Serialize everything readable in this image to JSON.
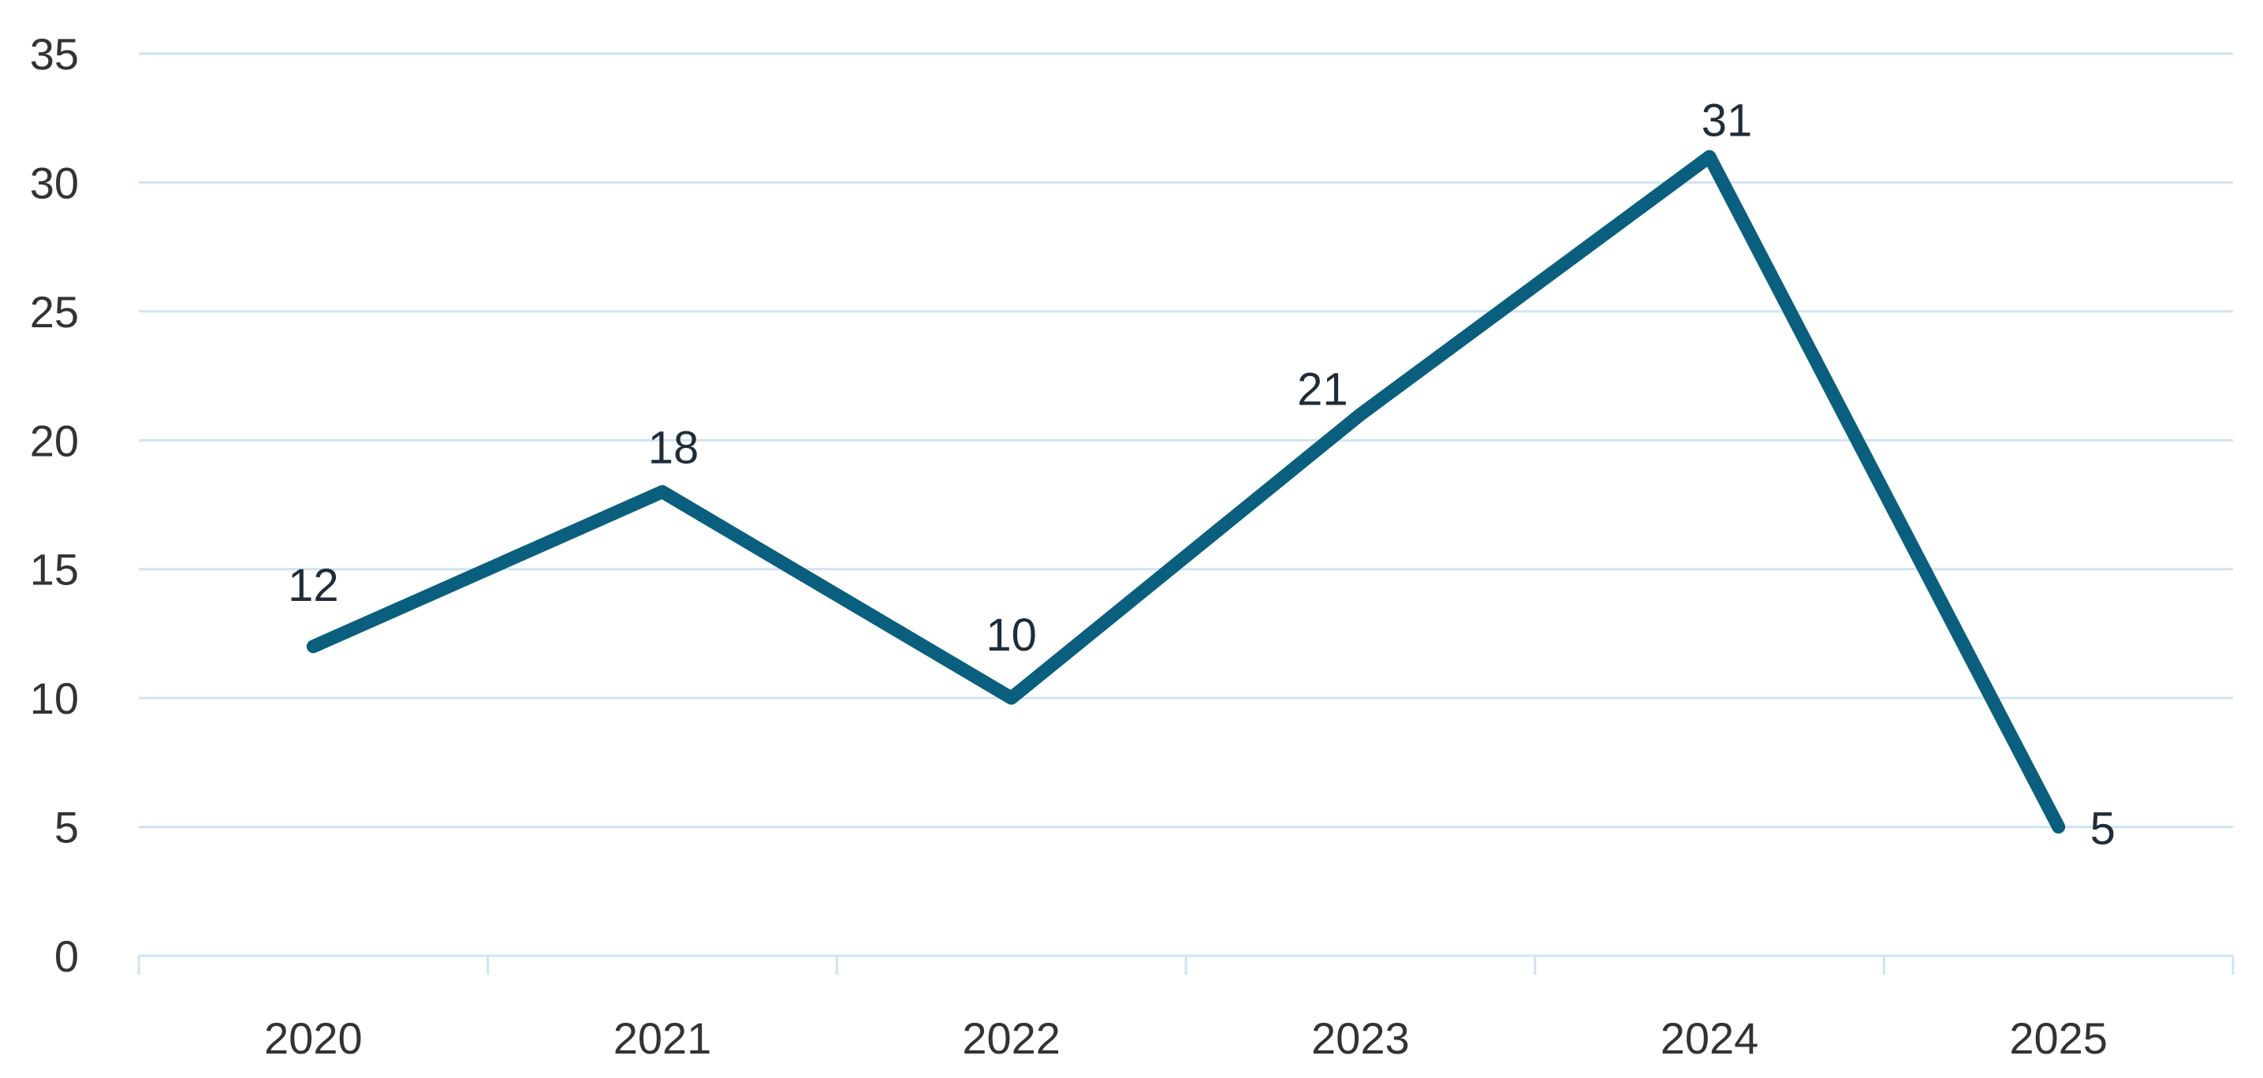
{
  "chart_data": {
    "type": "line",
    "title": "",
    "xlabel": "",
    "ylabel": "",
    "categories": [
      "2020",
      "2021",
      "2022",
      "2023",
      "2024",
      "2025"
    ],
    "series": [
      {
        "values": [
          12,
          18,
          10,
          21,
          31,
          5
        ]
      }
    ],
    "data_labels": [
      "12",
      "18",
      "10",
      "21",
      "31",
      "5"
    ],
    "ylim": [
      0,
      35
    ],
    "yticks": [
      0,
      5,
      10,
      15,
      20,
      25,
      30,
      35
    ],
    "ytick_labels": [
      "0",
      "5",
      "10",
      "15",
      "20",
      "25",
      "30",
      "35"
    ],
    "grid": true,
    "legend": "none",
    "colors": {
      "line": "#0a5f7e",
      "grid": "#cfe4f3",
      "text": "#333333"
    }
  }
}
